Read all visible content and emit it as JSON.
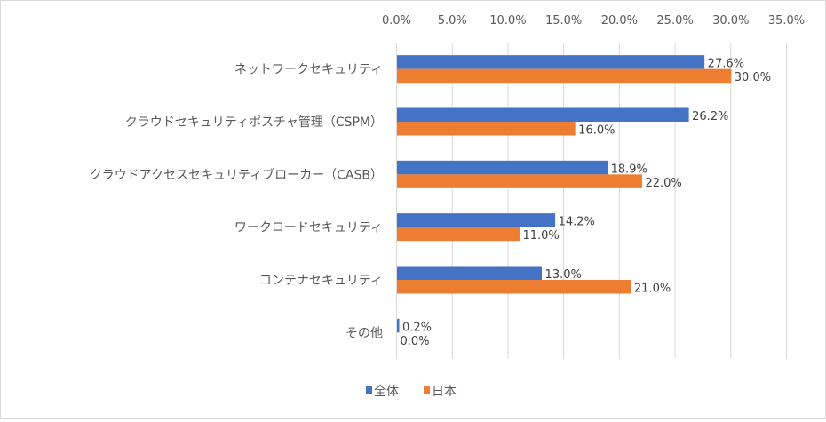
{
  "chart_data": {
    "type": "bar",
    "orientation": "horizontal",
    "title": "",
    "xlabel": "",
    "ylabel": "",
    "xlim": [
      0,
      35
    ],
    "x_ticks": [
      0,
      5,
      10,
      15,
      20,
      25,
      30,
      35
    ],
    "x_tick_labels": [
      "0.0%",
      "5.0%",
      "10.0%",
      "15.0%",
      "20.0%",
      "25.0%",
      "30.0%",
      "35.0%"
    ],
    "x_axis_position": "top",
    "grid": true,
    "categories": [
      "ネットワークセキュリティ",
      "クラウドセキュリティポスチャ管理（CSPM）",
      "クラウドアクセスセキュリティブローカー（CASB）",
      "ワークロードセキュリティ",
      "コンテナセキュリティ",
      "その他"
    ],
    "series": [
      {
        "name": "全体",
        "color": "#4472c4",
        "values": [
          27.6,
          26.2,
          18.9,
          14.2,
          13.0,
          0.2
        ],
        "labels": [
          "27.6%",
          "26.2%",
          "18.9%",
          "14.2%",
          "13.0%",
          "0.2%"
        ]
      },
      {
        "name": "日本",
        "color": "#ed7d31",
        "values": [
          30.0,
          16.0,
          22.0,
          11.0,
          21.0,
          0.0
        ],
        "labels": [
          "30.0%",
          "16.0%",
          "22.0%",
          "11.0%",
          "21.0%",
          "0.0%"
        ]
      }
    ],
    "legend": {
      "position": "bottom",
      "entries": [
        "全体",
        "日本"
      ]
    }
  }
}
